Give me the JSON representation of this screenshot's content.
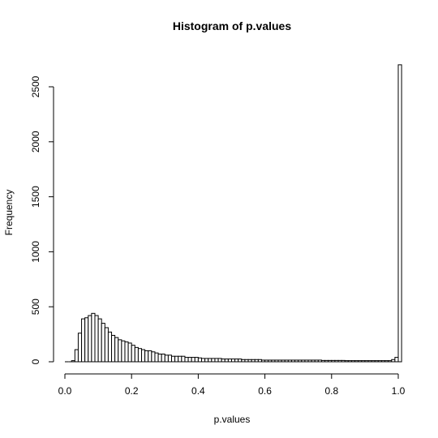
{
  "chart_data": {
    "type": "bar",
    "title": "Histogram of p.values",
    "xlabel": "p.values",
    "ylabel": "Frequency",
    "xlim": [
      0.0,
      1.0
    ],
    "ylim": [
      0,
      2700
    ],
    "x_ticks": [
      0.0,
      0.2,
      0.4,
      0.6,
      0.8,
      1.0
    ],
    "x_tick_labels": [
      "0.0",
      "0.2",
      "0.4",
      "0.6",
      "0.8",
      "1.0"
    ],
    "y_ticks": [
      0,
      500,
      1000,
      1500,
      2000,
      2500
    ],
    "y_tick_labels": [
      "0",
      "500",
      "1000",
      "1500",
      "2000",
      "2500"
    ],
    "bin_width": 0.01,
    "bin_start": 0.0,
    "values": [
      0,
      0,
      10,
      110,
      260,
      390,
      400,
      420,
      440,
      420,
      390,
      350,
      310,
      270,
      240,
      220,
      200,
      190,
      180,
      170,
      150,
      130,
      120,
      110,
      100,
      100,
      90,
      80,
      70,
      70,
      60,
      60,
      50,
      50,
      50,
      50,
      40,
      40,
      40,
      40,
      35,
      30,
      30,
      30,
      30,
      30,
      30,
      25,
      25,
      25,
      25,
      25,
      25,
      20,
      20,
      20,
      20,
      20,
      20,
      15,
      15,
      15,
      15,
      15,
      15,
      15,
      15,
      15,
      15,
      15,
      15,
      15,
      15,
      15,
      15,
      15,
      15,
      12,
      12,
      12,
      12,
      12,
      12,
      12,
      10,
      10,
      10,
      10,
      10,
      10,
      10,
      10,
      10,
      10,
      10,
      10,
      10,
      10,
      20,
      40,
      2700
    ],
    "grid": false,
    "legend": "none",
    "bar_fill": "#ffffff",
    "bar_stroke": "#000000"
  }
}
